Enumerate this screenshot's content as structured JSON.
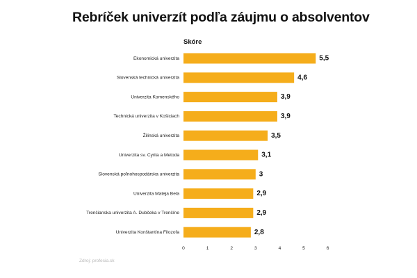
{
  "title": "Rebríček univerzít podľa záujmu o absolventov",
  "source": "Zdroj: profesia.sk",
  "chart_data": {
    "type": "bar",
    "orientation": "horizontal",
    "title": "Rebríček univerzít podľa záujmu o absolventov",
    "categories": [
      "Ekonomická univerzita",
      "Slovenská technická univerzita",
      "Univerzita Komenského",
      "Technická univerzita v Košiciach",
      "Žilinská univerzita",
      "Univerzita sv. Cyrila a Metoda",
      "Slovenská poľnohospodárska univerzita",
      "Univerzita Mateja Bela",
      "Trenčianska univerzita A. Dubčeka v Trenčíne",
      "Univerzita Konštantína Filozofa"
    ],
    "series": [
      {
        "name": "Skóre",
        "values": [
          5.5,
          4.6,
          3.9,
          3.9,
          3.5,
          3.1,
          3.0,
          2.9,
          2.9,
          2.8
        ],
        "value_labels": [
          "5,5",
          "4,6",
          "3,9",
          "3,9",
          "3,5",
          "3,1",
          "3",
          "2,9",
          "2,9",
          "2,8"
        ]
      }
    ],
    "xlim": [
      0,
      6
    ],
    "xticks": [
      "0",
      "1",
      "2",
      "3",
      "4",
      "5",
      "6"
    ],
    "bar_color": "#f5ad1b",
    "grid": false,
    "legend": "none"
  }
}
